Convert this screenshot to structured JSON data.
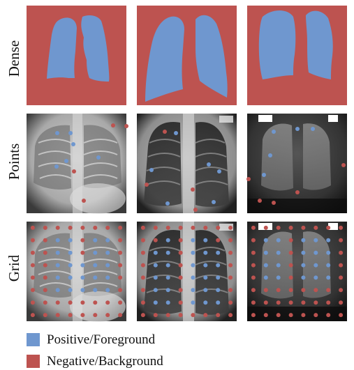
{
  "row_labels": [
    "Dense",
    "Points",
    "Grid"
  ],
  "legend": [
    {
      "label": "Positive/Foreground",
      "color": "#6f97cf"
    },
    {
      "label": "Negative/Background",
      "color": "#bd5350"
    }
  ],
  "colors": {
    "positive": "#6f97cf",
    "negative": "#bd5350"
  }
}
